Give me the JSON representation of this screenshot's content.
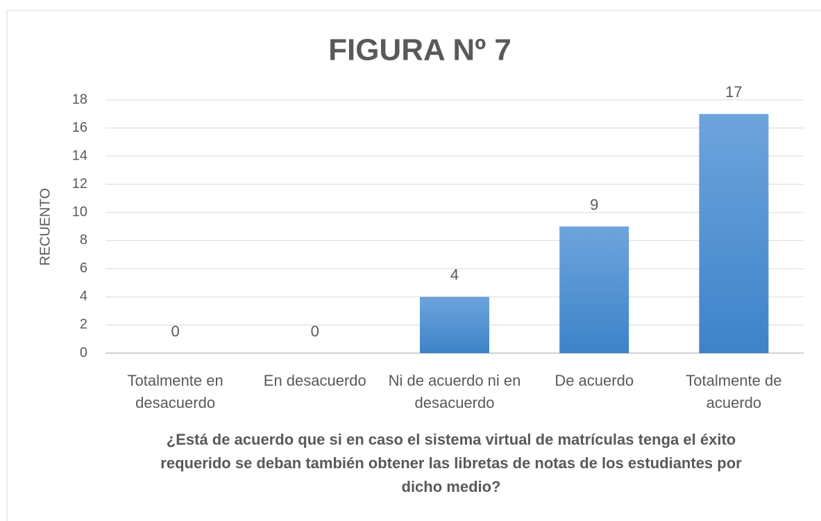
{
  "chart_data": {
    "type": "bar",
    "title": "FIGURA Nº 7",
    "categories": [
      "Totalmente en desacuerdo",
      "En desacuerdo",
      "Ni de acuerdo ni en desacuerdo",
      "De acuerdo",
      "Totalmente de acuerdo"
    ],
    "values": [
      0,
      0,
      4,
      9,
      17
    ],
    "color": "#4a8fd4",
    "y_label": "RECUENTO",
    "x_label": "¿Está de acuerdo que si en caso el sistema virtual de matrículas tenga el éxito requerido se deban también obtener las libretas de notas de los estudiantes por dicho medio?",
    "ylim": [
      0,
      18
    ],
    "yticks": [
      0,
      2,
      4,
      6,
      8,
      10,
      12,
      14,
      16,
      18
    ],
    "grid": true
  }
}
